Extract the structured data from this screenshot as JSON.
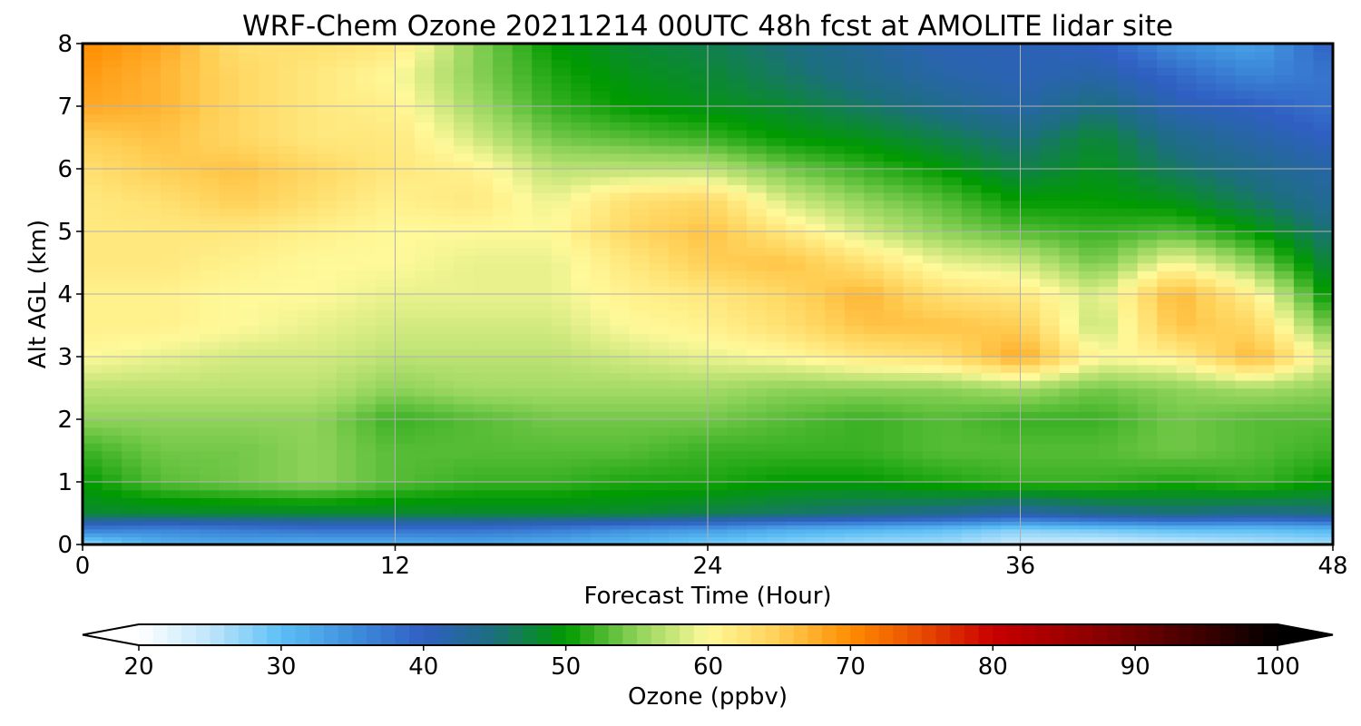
{
  "chart_data": {
    "type": "heatmap",
    "title": "WRF-Chem Ozone  20211214 00UTC 48h fcst at AMOLITE lidar site",
    "xlabel": "Forecast Time (Hour)",
    "ylabel": "Alt AGL (km)",
    "xlim": [
      0,
      48
    ],
    "ylim": [
      0,
      8
    ],
    "x_ticks": [
      0,
      12,
      24,
      36,
      48
    ],
    "y_ticks": [
      0,
      1,
      2,
      3,
      4,
      5,
      6,
      7,
      8
    ],
    "grid": true,
    "grid_x": [
      0,
      3,
      6,
      9,
      12,
      15,
      18,
      21,
      24,
      27,
      30,
      33,
      36,
      39,
      42,
      45,
      48
    ],
    "grid_y": [
      0,
      0.25,
      0.5,
      1,
      1.5,
      2,
      2.5,
      3,
      3.5,
      4,
      4.5,
      5,
      5.5,
      6,
      6.5,
      7,
      7.5,
      8
    ],
    "values": [
      [
        26,
        31,
        32,
        31,
        31,
        32,
        31,
        30,
        28,
        27,
        26,
        26,
        24,
        23,
        24,
        25,
        26
      ],
      [
        37,
        36,
        37,
        38,
        38,
        38,
        37,
        35,
        34,
        32,
        31,
        30,
        28,
        29,
        30,
        30,
        31
      ],
      [
        48,
        48,
        48,
        48,
        48,
        48,
        48,
        48,
        47,
        46,
        45,
        44,
        42,
        44,
        45,
        44,
        45
      ],
      [
        50,
        53,
        54,
        55,
        53,
        52,
        52,
        51,
        51,
        50,
        50,
        51,
        52,
        52,
        51,
        52,
        50
      ],
      [
        52,
        54,
        54,
        55,
        53,
        53,
        53,
        53,
        52,
        52,
        52,
        53,
        53,
        53,
        54,
        53,
        52
      ],
      [
        55,
        55,
        55,
        55,
        52,
        53,
        54,
        54,
        54,
        53,
        52,
        53,
        52,
        52,
        54,
        53,
        53
      ],
      [
        57,
        57,
        57,
        57,
        55,
        56,
        56,
        56,
        56,
        55,
        55,
        55,
        56,
        54,
        55,
        56,
        55
      ],
      [
        60,
        59,
        58,
        58,
        57,
        57,
        57,
        58,
        59,
        60,
        62,
        63,
        68,
        60,
        61,
        67,
        58
      ],
      [
        61,
        61,
        60,
        59,
        58,
        58,
        58,
        60,
        61,
        63,
        66,
        66,
        65,
        57,
        66,
        64,
        53
      ],
      [
        61,
        61,
        60,
        60,
        59,
        59,
        59,
        61,
        62,
        64,
        67,
        63,
        62,
        58,
        67,
        61,
        49
      ],
      [
        62,
        62,
        61,
        60,
        60,
        59,
        59,
        62,
        65,
        66,
        63,
        59,
        58,
        54,
        60,
        55,
        47
      ],
      [
        62,
        62,
        62,
        61,
        60,
        60,
        60,
        64,
        66,
        62,
        58,
        55,
        53,
        52,
        53,
        50,
        45
      ],
      [
        62,
        63,
        65,
        63,
        61,
        62,
        59,
        63,
        64,
        58,
        55,
        53,
        50,
        50,
        49,
        46,
        43
      ],
      [
        63,
        65,
        66,
        64,
        62,
        61,
        57,
        57,
        57,
        54,
        52,
        50,
        47,
        49,
        46,
        44,
        42
      ],
      [
        65,
        66,
        64,
        62,
        62,
        58,
        54,
        53,
        52,
        50,
        49,
        47,
        45,
        48,
        44,
        42,
        40
      ],
      [
        68,
        67,
        64,
        62,
        61,
        56,
        52,
        50,
        49,
        48,
        46,
        44,
        42,
        45,
        41,
        40,
        38
      ],
      [
        69,
        67,
        64,
        62,
        60,
        55,
        51,
        49,
        48,
        46,
        44,
        42,
        41,
        42,
        39,
        36,
        38
      ],
      [
        70,
        68,
        63,
        63,
        62,
        55,
        50,
        48,
        47,
        45,
        43,
        41,
        41,
        40,
        35,
        33,
        40
      ]
    ],
    "colorbar": {
      "label": "Ozone  (ppbv)",
      "min": 20,
      "max": 100,
      "ticks": [
        20,
        30,
        40,
        50,
        60,
        70,
        80,
        90,
        100
      ],
      "extend": "both",
      "stops": [
        {
          "v": 20,
          "c": "#ffffff"
        },
        {
          "v": 25,
          "c": "#bfe6fb"
        },
        {
          "v": 30,
          "c": "#5cbff5"
        },
        {
          "v": 35,
          "c": "#3f8fdd"
        },
        {
          "v": 40,
          "c": "#2f5fc2"
        },
        {
          "v": 45,
          "c": "#1c6f7e"
        },
        {
          "v": 50,
          "c": "#009a00"
        },
        {
          "v": 55,
          "c": "#8fd35a"
        },
        {
          "v": 60,
          "c": "#fff99a"
        },
        {
          "v": 65,
          "c": "#ffcf55"
        },
        {
          "v": 70,
          "c": "#ff8c00"
        },
        {
          "v": 75,
          "c": "#e84a00"
        },
        {
          "v": 80,
          "c": "#c80000"
        },
        {
          "v": 85,
          "c": "#a00000"
        },
        {
          "v": 90,
          "c": "#700000"
        },
        {
          "v": 95,
          "c": "#3a0000"
        },
        {
          "v": 100,
          "c": "#000000"
        }
      ]
    }
  }
}
